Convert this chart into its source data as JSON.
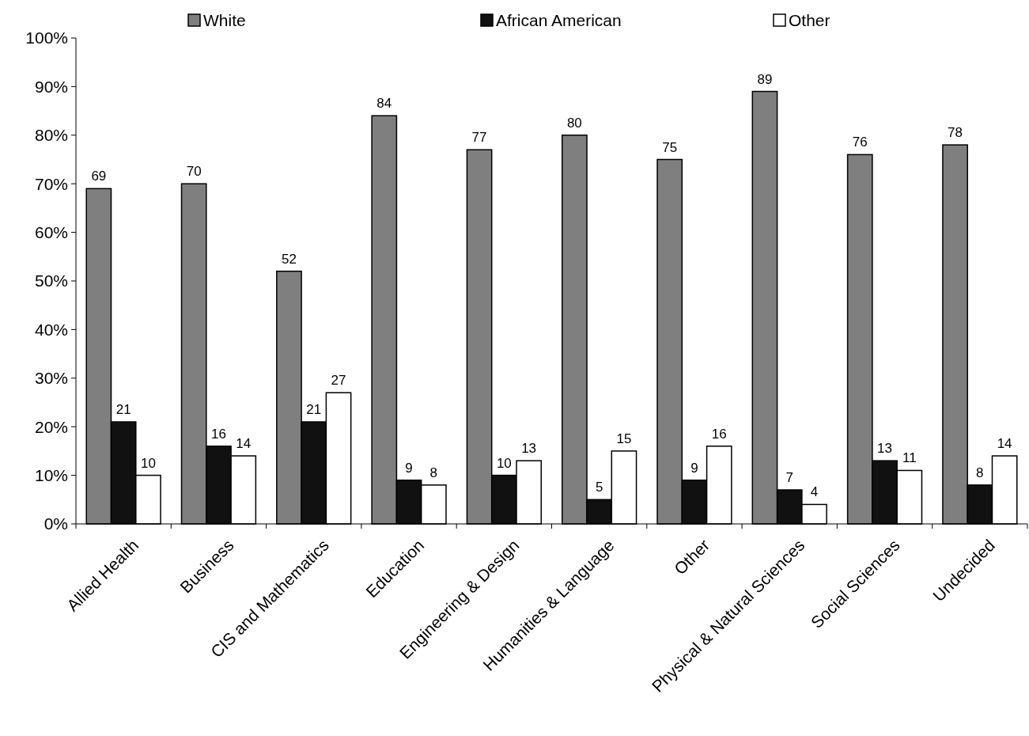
{
  "chart_data": {
    "type": "bar",
    "categories": [
      "Allied Health",
      "Business",
      "CIS and Mathematics",
      "Education",
      "Engineering & Design",
      "Humanities & Language",
      "Other",
      "Physical & Natural Sciences",
      "Social Sciences",
      "Undecided"
    ],
    "series": [
      {
        "name": "White",
        "color": "#7f7f7f",
        "values": [
          69,
          70,
          52,
          84,
          77,
          80,
          75,
          89,
          76,
          78
        ]
      },
      {
        "name": "African American",
        "color": "#111111",
        "values": [
          21,
          16,
          21,
          9,
          10,
          5,
          9,
          7,
          13,
          8
        ]
      },
      {
        "name": "Other",
        "color": "#ffffff",
        "values": [
          10,
          14,
          27,
          8,
          13,
          15,
          16,
          4,
          11,
          14
        ]
      }
    ],
    "ylim": [
      0,
      100
    ],
    "yticks": [
      {
        "value": 0,
        "label": "0%"
      },
      {
        "value": 10,
        "label": "10%"
      },
      {
        "value": 20,
        "label": "20%"
      },
      {
        "value": 30,
        "label": "30%"
      },
      {
        "value": 40,
        "label": "40%"
      },
      {
        "value": 50,
        "label": "50%"
      },
      {
        "value": 60,
        "label": "60%"
      },
      {
        "value": 70,
        "label": "70%"
      },
      {
        "value": 80,
        "label": "80%"
      },
      {
        "value": 90,
        "label": "90%"
      },
      {
        "value": 100,
        "label": "100%"
      }
    ],
    "data_labels": true,
    "legend": "top",
    "grid": false
  }
}
